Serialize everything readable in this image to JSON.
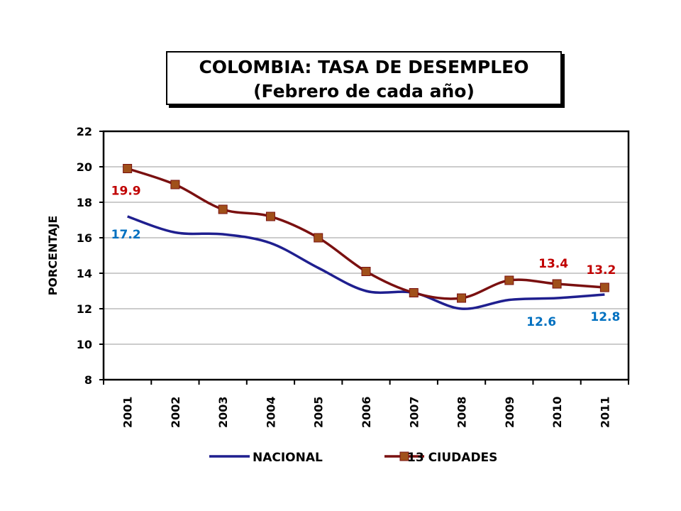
{
  "chart_data": {
    "type": "line",
    "title_line1": "COLOMBIA: TASA DE DESEMPLEO",
    "title_line2": "(Febrero de cada año)",
    "ylabel": "PORCENTAJE",
    "ylim": [
      8,
      22
    ],
    "yticks": [
      8,
      10,
      12,
      14,
      16,
      18,
      20,
      22
    ],
    "categories": [
      "2001",
      "2002",
      "2003",
      "2004",
      "2005",
      "2006",
      "2007",
      "2008",
      "2009",
      "2010",
      "2011"
    ],
    "series": [
      {
        "name": "NACIONAL",
        "color": "#1f1f8f",
        "marker": "none",
        "values": [
          17.2,
          16.3,
          16.2,
          15.7,
          14.3,
          13.0,
          12.9,
          12.0,
          12.5,
          12.6,
          12.8
        ]
      },
      {
        "name": "13 CIUDADES",
        "color": "#7a1010",
        "marker": "square",
        "marker_color": "#a0501a",
        "values": [
          19.9,
          19.0,
          17.6,
          17.2,
          16.0,
          14.1,
          12.9,
          12.6,
          13.6,
          13.4,
          13.2
        ]
      }
    ],
    "data_labels": [
      {
        "text": "19.9",
        "color": "#c00000"
      },
      {
        "text": "17.2",
        "color": "#0070c0"
      },
      {
        "text": "13.4",
        "color": "#c00000"
      },
      {
        "text": "13.2",
        "color": "#c00000"
      },
      {
        "text": "12.6",
        "color": "#0070c0"
      },
      {
        "text": "12.8",
        "color": "#0070c0"
      }
    ],
    "grid": true,
    "legend": "bottom"
  }
}
